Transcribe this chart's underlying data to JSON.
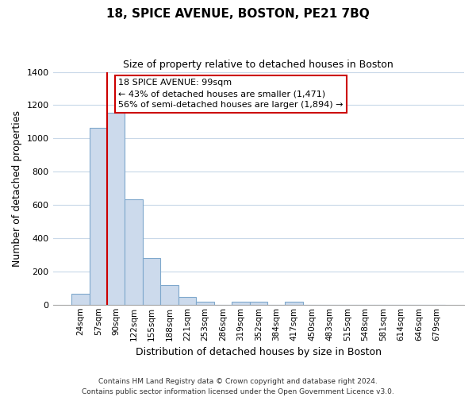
{
  "title": "18, SPICE AVENUE, BOSTON, PE21 7BQ",
  "subtitle": "Size of property relative to detached houses in Boston",
  "xlabel": "Distribution of detached houses by size in Boston",
  "ylabel": "Number of detached properties",
  "bar_labels": [
    "24sqm",
    "57sqm",
    "90sqm",
    "122sqm",
    "155sqm",
    "188sqm",
    "221sqm",
    "253sqm",
    "286sqm",
    "319sqm",
    "352sqm",
    "384sqm",
    "417sqm",
    "450sqm",
    "483sqm",
    "515sqm",
    "548sqm",
    "581sqm",
    "614sqm",
    "646sqm",
    "679sqm"
  ],
  "bar_values": [
    65,
    1065,
    1155,
    635,
    280,
    120,
    45,
    20,
    0,
    20,
    20,
    0,
    20,
    0,
    0,
    0,
    0,
    0,
    0,
    0,
    0
  ],
  "bar_color": "#ccdaec",
  "bar_edge_color": "#7fa8cc",
  "vline_x_idx": 2,
  "vline_color": "#cc0000",
  "ylim": [
    0,
    1400
  ],
  "yticks": [
    0,
    200,
    400,
    600,
    800,
    1000,
    1200,
    1400
  ],
  "annotation_line1": "18 SPICE AVENUE: 99sqm",
  "annotation_line2": "← 43% of detached houses are smaller (1,471)",
  "annotation_line3": "56% of semi-detached houses are larger (1,894) →",
  "annotation_box_color": "#ffffff",
  "annotation_box_edge": "#cc0000",
  "footer_line1": "Contains HM Land Registry data © Crown copyright and database right 2024.",
  "footer_line2": "Contains public sector information licensed under the Open Government Licence v3.0.",
  "background_color": "#ffffff",
  "grid_color": "#c8d8e8",
  "title_fontsize": 11,
  "subtitle_fontsize": 9,
  "axis_label_fontsize": 9,
  "tick_fontsize": 7.5,
  "annotation_fontsize": 8,
  "footer_fontsize": 6.5
}
